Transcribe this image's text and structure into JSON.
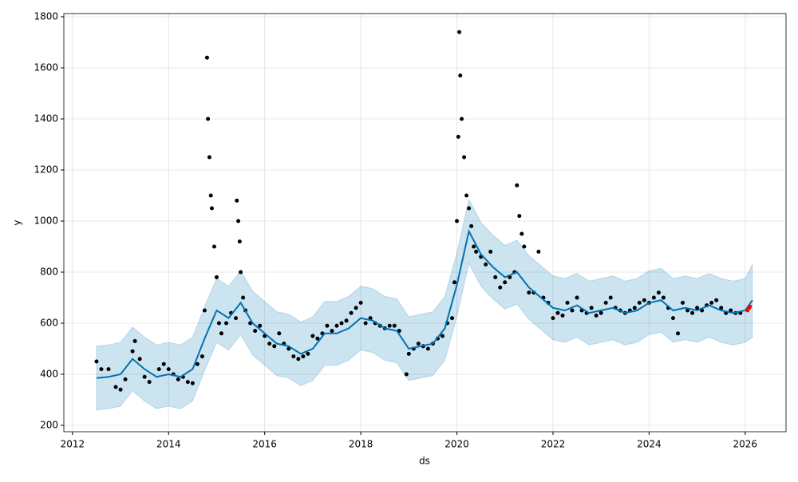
{
  "chart_data": {
    "type": "line",
    "xlabel": "ds",
    "ylabel": "y",
    "xlim": [
      2011.82,
      2026.85
    ],
    "ylim": [
      175,
      1812.5
    ],
    "xticks": [
      2012,
      2014,
      2016,
      2018,
      2020,
      2022,
      2024,
      2026
    ],
    "yticks": [
      200,
      400,
      600,
      800,
      1000,
      1200,
      1400,
      1600,
      1800
    ],
    "grid": true,
    "forecast": {
      "color": "#0072b2",
      "band_color": "#0072b2",
      "x": [
        2012.5,
        2012.75,
        2013.0,
        2013.25,
        2013.5,
        2013.75,
        2014.0,
        2014.25,
        2014.5,
        2014.75,
        2015.0,
        2015.25,
        2015.5,
        2015.75,
        2016.0,
        2016.25,
        2016.5,
        2016.75,
        2017.0,
        2017.25,
        2017.5,
        2017.75,
        2018.0,
        2018.25,
        2018.5,
        2018.75,
        2019.0,
        2019.25,
        2019.5,
        2019.75,
        2020.0,
        2020.25,
        2020.5,
        2020.75,
        2021.0,
        2021.25,
        2021.5,
        2021.75,
        2022.0,
        2022.25,
        2022.5,
        2022.75,
        2023.0,
        2023.25,
        2023.5,
        2023.75,
        2024.0,
        2024.25,
        2024.5,
        2024.75,
        2025.0,
        2025.25,
        2025.5,
        2025.75,
        2026.0,
        2026.15
      ],
      "values": [
        385,
        390,
        400,
        460,
        420,
        390,
        400,
        390,
        420,
        540,
        650,
        620,
        680,
        600,
        560,
        520,
        510,
        480,
        500,
        560,
        560,
        580,
        620,
        610,
        580,
        570,
        500,
        510,
        520,
        580,
        750,
        960,
        870,
        820,
        780,
        800,
        740,
        700,
        660,
        650,
        670,
        640,
        650,
        660,
        640,
        650,
        680,
        690,
        650,
        660,
        650,
        670,
        650,
        640,
        650,
        690
      ],
      "lower": [
        260,
        265,
        275,
        335,
        295,
        265,
        275,
        265,
        295,
        415,
        525,
        495,
        555,
        475,
        435,
        395,
        385,
        355,
        375,
        435,
        435,
        455,
        495,
        485,
        455,
        445,
        375,
        385,
        395,
        455,
        625,
        835,
        745,
        695,
        655,
        675,
        615,
        575,
        535,
        525,
        545,
        515,
        525,
        535,
        515,
        525,
        555,
        565,
        525,
        535,
        525,
        545,
        525,
        515,
        525,
        545
      ],
      "upper": [
        510,
        515,
        525,
        585,
        545,
        515,
        525,
        515,
        545,
        665,
        775,
        745,
        805,
        725,
        685,
        645,
        635,
        605,
        625,
        685,
        685,
        705,
        745,
        735,
        705,
        695,
        625,
        635,
        645,
        705,
        875,
        1085,
        995,
        945,
        905,
        925,
        865,
        825,
        785,
        775,
        795,
        765,
        775,
        785,
        765,
        775,
        805,
        815,
        775,
        785,
        775,
        795,
        775,
        765,
        775,
        830
      ]
    },
    "observed": {
      "color": "#000000",
      "x": [
        2012.5,
        2012.6,
        2012.75,
        2012.9,
        2013.0,
        2013.1,
        2013.25,
        2013.3,
        2013.4,
        2013.5,
        2013.6,
        2013.8,
        2013.9,
        2014.0,
        2014.1,
        2014.2,
        2014.3,
        2014.4,
        2014.5,
        2014.6,
        2014.7,
        2014.75,
        2014.8,
        2014.82,
        2014.85,
        2014.88,
        2014.9,
        2014.95,
        2015.0,
        2015.05,
        2015.1,
        2015.2,
        2015.3,
        2015.4,
        2015.42,
        2015.45,
        2015.48,
        2015.5,
        2015.55,
        2015.6,
        2015.7,
        2015.8,
        2015.9,
        2016.0,
        2016.1,
        2016.2,
        2016.3,
        2016.4,
        2016.5,
        2016.6,
        2016.7,
        2016.8,
        2016.9,
        2017.0,
        2017.1,
        2017.2,
        2017.3,
        2017.4,
        2017.5,
        2017.6,
        2017.7,
        2017.8,
        2017.9,
        2018.0,
        2018.1,
        2018.2,
        2018.3,
        2018.4,
        2018.5,
        2018.6,
        2018.7,
        2018.8,
        2018.95,
        2019.0,
        2019.1,
        2019.2,
        2019.3,
        2019.4,
        2019.5,
        2019.6,
        2019.7,
        2019.8,
        2019.9,
        2019.95,
        2020.0,
        2020.03,
        2020.05,
        2020.07,
        2020.1,
        2020.15,
        2020.2,
        2020.25,
        2020.3,
        2020.35,
        2020.4,
        2020.5,
        2020.6,
        2020.7,
        2020.8,
        2020.9,
        2021.0,
        2021.1,
        2021.2,
        2021.25,
        2021.3,
        2021.35,
        2021.4,
        2021.5,
        2021.6,
        2021.7,
        2021.8,
        2021.9,
        2022.0,
        2022.1,
        2022.2,
        2022.3,
        2022.4,
        2022.5,
        2022.6,
        2022.7,
        2022.8,
        2022.9,
        2023.0,
        2023.1,
        2023.2,
        2023.3,
        2023.4,
        2023.5,
        2023.6,
        2023.7,
        2023.8,
        2023.9,
        2024.0,
        2024.1,
        2024.2,
        2024.3,
        2024.4,
        2024.5,
        2024.6,
        2024.7,
        2024.8,
        2024.9,
        2025.0,
        2025.1,
        2025.2,
        2025.3,
        2025.4,
        2025.5,
        2025.6,
        2025.7,
        2025.8,
        2025.9
      ],
      "values": [
        450,
        420,
        420,
        350,
        340,
        380,
        490,
        530,
        460,
        390,
        370,
        420,
        440,
        420,
        400,
        380,
        390,
        370,
        365,
        440,
        470,
        650,
        1640,
        1400,
        1250,
        1100,
        1050,
        900,
        780,
        600,
        560,
        600,
        640,
        620,
        1080,
        1000,
        920,
        800,
        700,
        650,
        600,
        570,
        590,
        550,
        520,
        510,
        560,
        520,
        500,
        470,
        460,
        470,
        480,
        550,
        540,
        560,
        590,
        570,
        590,
        600,
        610,
        640,
        660,
        680,
        600,
        620,
        600,
        590,
        580,
        590,
        590,
        570,
        400,
        480,
        500,
        520,
        510,
        500,
        520,
        540,
        550,
        600,
        620,
        760,
        1000,
        1330,
        1740,
        1570,
        1400,
        1250,
        1100,
        1050,
        980,
        900,
        880,
        860,
        830,
        880,
        780,
        740,
        760,
        780,
        800,
        1140,
        1020,
        950,
        900,
        720,
        720,
        880,
        700,
        680,
        620,
        640,
        630,
        680,
        650,
        700,
        650,
        640,
        660,
        630,
        640,
        680,
        700,
        660,
        650,
        640,
        650,
        660,
        680,
        690,
        680,
        700,
        720,
        700,
        660,
        620,
        560,
        680,
        650,
        640,
        660,
        650,
        670,
        680,
        690,
        660,
        640,
        650,
        640,
        640
      ]
    },
    "future": {
      "color": "#ff0000",
      "x": [
        2026.05,
        2026.08,
        2026.1
      ],
      "values": [
        650,
        660,
        665
      ]
    }
  }
}
